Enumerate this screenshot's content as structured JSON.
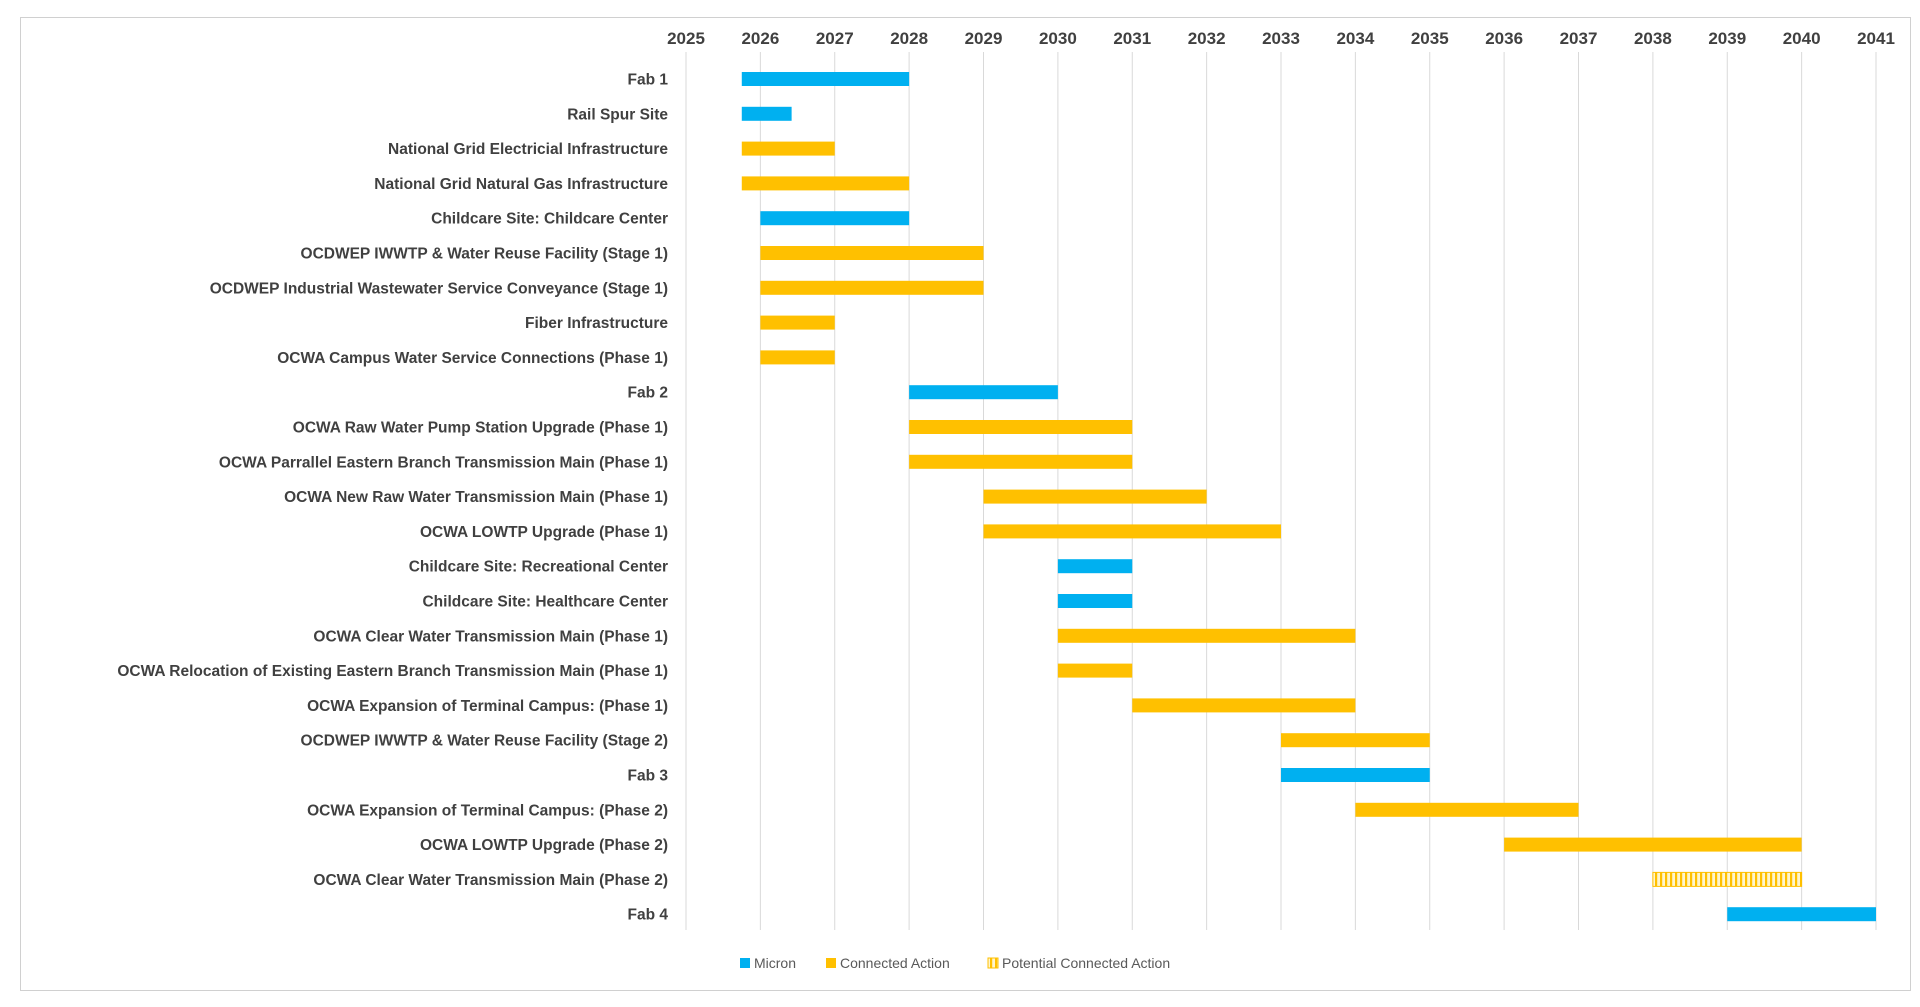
{
  "colors": {
    "micron": "#00b0f0",
    "connected": "#ffc000",
    "potential_stripe": "#ffc000",
    "potential_bg": "#fff5cc",
    "text": "#404040",
    "grid": "#d9d9d9"
  },
  "chart_data": {
    "type": "gantt",
    "title": "",
    "x_unit": "year",
    "xlim": [
      2025,
      2041
    ],
    "ticks": [
      2025,
      2026,
      2027,
      2028,
      2029,
      2030,
      2031,
      2032,
      2033,
      2034,
      2035,
      2036,
      2037,
      2038,
      2039,
      2040,
      2041
    ],
    "legend": [
      {
        "key": "micron",
        "label": "Micron"
      },
      {
        "key": "connected",
        "label": "Connected Action"
      },
      {
        "key": "potential",
        "label": "Potential Connected Action"
      }
    ],
    "legend_position": "bottom-center",
    "tasks": [
      {
        "label": "Fab 1",
        "start": 2025.75,
        "end": 2028,
        "category": "micron"
      },
      {
        "label": "Rail Spur Site",
        "start": 2025.75,
        "end": 2026.42,
        "category": "micron"
      },
      {
        "label": "National Grid Electricial Infrastructure",
        "start": 2025.75,
        "end": 2027,
        "category": "connected"
      },
      {
        "label": "National Grid Natural Gas Infrastructure",
        "start": 2025.75,
        "end": 2028,
        "category": "connected"
      },
      {
        "label": "Childcare Site: Childcare Center",
        "start": 2026,
        "end": 2028,
        "category": "micron"
      },
      {
        "label": "OCDWEP IWWTP & Water Reuse Facility (Stage 1)",
        "start": 2026,
        "end": 2029,
        "category": "connected"
      },
      {
        "label": "OCDWEP Industrial Wastewater Service Conveyance (Stage 1)",
        "start": 2026,
        "end": 2029,
        "category": "connected"
      },
      {
        "label": "Fiber Infrastructure",
        "start": 2026,
        "end": 2027,
        "category": "connected"
      },
      {
        "label": "OCWA Campus Water Service Connections (Phase 1)",
        "start": 2026,
        "end": 2027,
        "category": "connected"
      },
      {
        "label": "Fab 2",
        "start": 2028,
        "end": 2030,
        "category": "micron"
      },
      {
        "label": "OCWA Raw Water Pump Station Upgrade (Phase 1)",
        "start": 2028,
        "end": 2031,
        "category": "connected"
      },
      {
        "label": "OCWA Parrallel Eastern Branch Transmission Main (Phase 1)",
        "start": 2028,
        "end": 2031,
        "category": "connected"
      },
      {
        "label": "OCWA New Raw Water Transmission Main (Phase 1)",
        "start": 2029,
        "end": 2032,
        "category": "connected"
      },
      {
        "label": "OCWA LOWTP Upgrade (Phase 1)",
        "start": 2029,
        "end": 2033,
        "category": "connected"
      },
      {
        "label": "Childcare Site: Recreational Center",
        "start": 2030,
        "end": 2031,
        "category": "micron"
      },
      {
        "label": "Childcare Site: Healthcare Center",
        "start": 2030,
        "end": 2031,
        "category": "micron"
      },
      {
        "label": "OCWA Clear Water Transmission Main  (Phase 1)",
        "start": 2030,
        "end": 2034,
        "category": "connected"
      },
      {
        "label": "OCWA Relocation of Existing Eastern Branch Transmission Main (Phase 1)",
        "start": 2030,
        "end": 2031,
        "category": "connected"
      },
      {
        "label": "OCWA Expansion of Terminal Campus: (Phase 1)",
        "start": 2031,
        "end": 2034,
        "category": "connected"
      },
      {
        "label": "OCDWEP IWWTP & Water Reuse Facility (Stage 2)",
        "start": 2033,
        "end": 2035,
        "category": "connected"
      },
      {
        "label": "Fab 3",
        "start": 2033,
        "end": 2035,
        "category": "micron"
      },
      {
        "label": "OCWA Expansion of Terminal Campus: (Phase 2)",
        "start": 2034,
        "end": 2037,
        "category": "connected"
      },
      {
        "label": "OCWA LOWTP Upgrade (Phase 2)",
        "start": 2036,
        "end": 2040,
        "category": "connected"
      },
      {
        "label": "OCWA Clear Water Transmission Main (Phase 2)",
        "start": 2038,
        "end": 2040,
        "category": "potential"
      },
      {
        "label": "Fab 4",
        "start": 2039,
        "end": 2041,
        "category": "micron"
      }
    ]
  }
}
